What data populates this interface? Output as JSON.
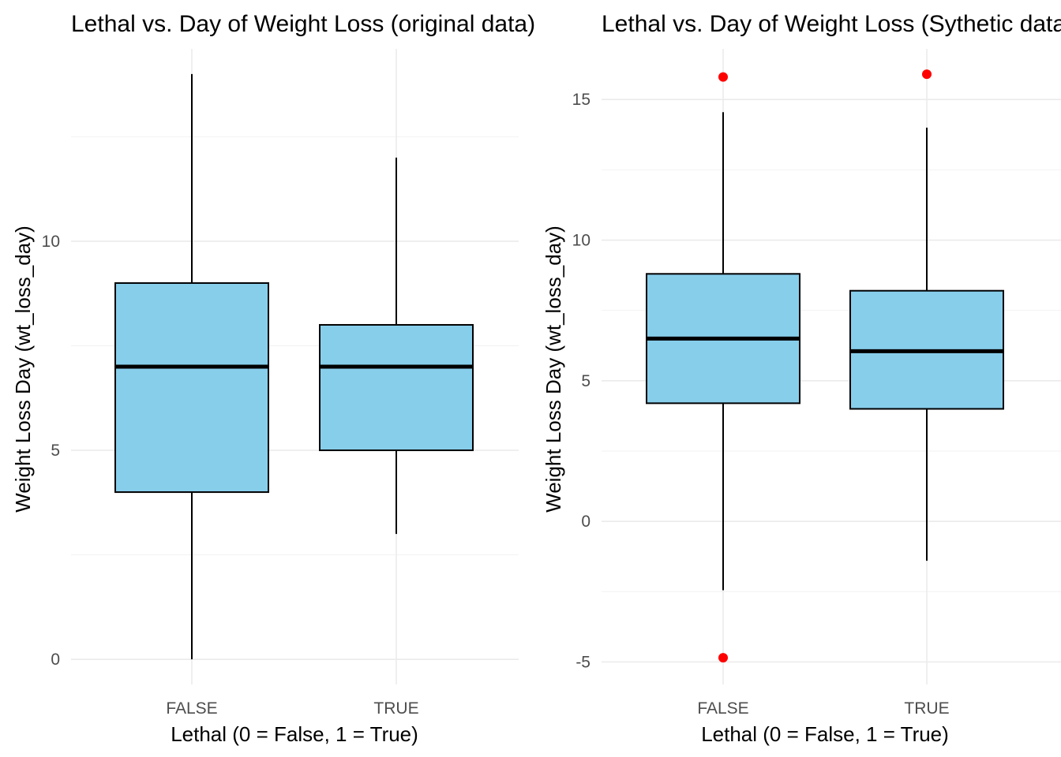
{
  "chart_data": [
    {
      "type": "box",
      "title": "Lethal vs. Day of Weight Loss (original data)",
      "xlabel": "Lethal (0 = False, 1 = True)",
      "ylabel": "Weight Loss Day (wt_loss_day)",
      "categories": [
        "FALSE",
        "TRUE"
      ],
      "yticks": [
        0,
        5,
        10
      ],
      "ylim": [
        -0.6,
        14.6
      ],
      "grid": true,
      "box_fill": "#87CEEB",
      "box_stroke": "#000000",
      "outlier_color": "#FF0000",
      "boxes": [
        {
          "category": "FALSE",
          "whisker_low": 0,
          "q1": 4,
          "median": 7,
          "q3": 9,
          "whisker_high": 14,
          "outliers": []
        },
        {
          "category": "TRUE",
          "whisker_low": 3,
          "q1": 5,
          "median": 7,
          "q3": 8,
          "whisker_high": 12,
          "outliers": []
        }
      ]
    },
    {
      "type": "box",
      "title": "Lethal vs. Day of Weight Loss (Sythetic data)",
      "xlabel": "Lethal (0 = False, 1 = True)",
      "ylabel": "Weight Loss Day (wt_loss_day)",
      "categories": [
        "FALSE",
        "TRUE"
      ],
      "yticks": [
        -5,
        0,
        5,
        10,
        15
      ],
      "ylim": [
        -5.8,
        16.8
      ],
      "grid": true,
      "box_fill": "#87CEEB",
      "box_stroke": "#000000",
      "outlier_color": "#FF0000",
      "boxes": [
        {
          "category": "FALSE",
          "whisker_low": -2.45,
          "q1": 4.2,
          "median": 6.5,
          "q3": 8.8,
          "whisker_high": 14.55,
          "outliers": [
            15.8,
            -4.85
          ]
        },
        {
          "category": "TRUE",
          "whisker_low": -1.4,
          "q1": 4.0,
          "median": 6.05,
          "q3": 8.2,
          "whisker_high": 14.0,
          "outliers": [
            15.9
          ]
        }
      ]
    }
  ]
}
